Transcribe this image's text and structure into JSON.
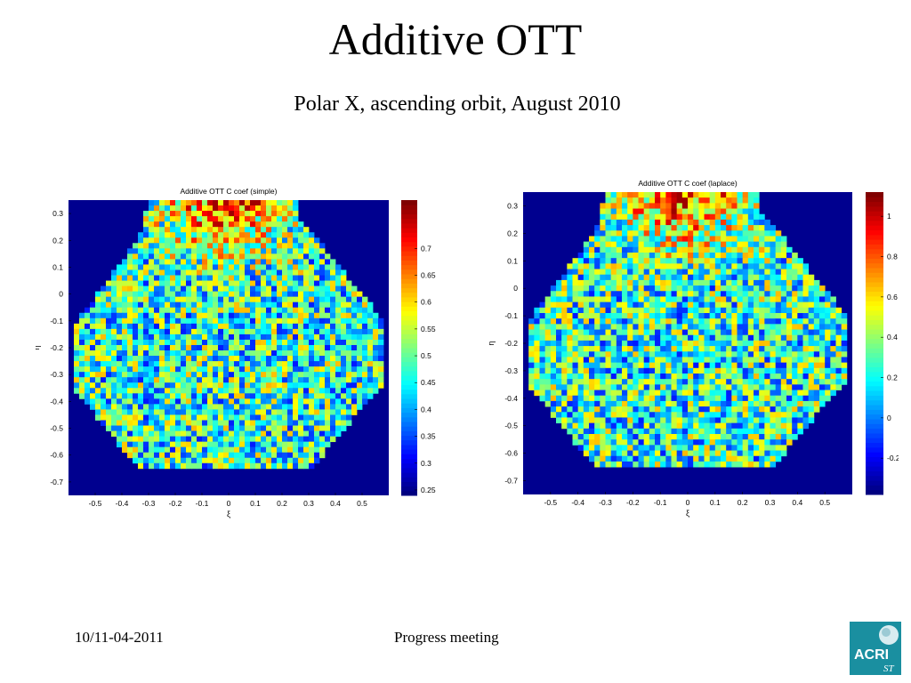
{
  "slide": {
    "title": "Additive OTT",
    "subtitle": "Polar X, ascending orbit, August 2010",
    "footer_date": "10/11-04-2011",
    "footer_center": "Progress meeting",
    "logo_text": "ACRI",
    "logo_sub": "ST"
  },
  "chart_data": [
    {
      "type": "heatmap",
      "title": "Additive OTT C coef (simple)",
      "xlabel": "ξ",
      "ylabel": "η",
      "xlim": [
        -0.6,
        0.6
      ],
      "ylim": [
        -0.75,
        0.35
      ],
      "xticks": [
        -0.5,
        -0.4,
        -0.3,
        -0.2,
        -0.1,
        0,
        0.1,
        0.2,
        0.3,
        0.4,
        0.5
      ],
      "xtick_labels": [
        "-0.5",
        "-0.4",
        "-0.3",
        "-0.2",
        "-0.1",
        "0",
        "0.1",
        "0.2",
        "0.3",
        "0.4",
        "0.5"
      ],
      "yticks": [
        0.3,
        0.2,
        0.1,
        0,
        -0.1,
        -0.2,
        -0.3,
        -0.4,
        -0.5,
        -0.6,
        -0.7
      ],
      "ytick_labels": [
        "0.3",
        "0.2",
        "0.1",
        "0",
        "-0.1",
        "-0.2",
        "-0.3",
        "-0.4",
        "-0.5",
        "-0.6",
        "-0.7"
      ],
      "colorbar": {
        "range": [
          0.24,
          0.79
        ],
        "ticks": [
          0.25,
          0.3,
          0.35,
          0.4,
          0.45,
          0.5,
          0.55,
          0.6,
          0.65,
          0.7
        ],
        "tick_labels": [
          "0.25",
          "0.3",
          "0.35",
          "0.4",
          "0.45",
          "0.5",
          "0.55",
          "0.6",
          "0.65",
          "0.7"
        ],
        "colormap": "jet"
      },
      "background_color": "#00008f",
      "data_region": "hexagonal field of view; higher values (0.65-0.75) near top center, mostly 0.45-0.55 elsewhere",
      "grid": false
    },
    {
      "type": "heatmap",
      "title": "Additive OTT C coef (laplace)",
      "xlabel": "ξ",
      "ylabel": "η",
      "xlim": [
        -0.6,
        0.6
      ],
      "ylim": [
        -0.75,
        0.35
      ],
      "xticks": [
        -0.5,
        -0.4,
        -0.3,
        -0.2,
        -0.1,
        0,
        0.1,
        0.2,
        0.3,
        0.4,
        0.5
      ],
      "xtick_labels": [
        "-0.5",
        "-0.4",
        "-0.3",
        "-0.2",
        "-0.1",
        "0",
        "0.1",
        "0.2",
        "0.3",
        "0.4",
        "0.5"
      ],
      "yticks": [
        0.3,
        0.2,
        0.1,
        0,
        -0.1,
        -0.2,
        -0.3,
        -0.4,
        -0.5,
        -0.6,
        -0.7
      ],
      "ytick_labels": [
        "0.3",
        "0.2",
        "0.1",
        "0",
        "-0.1",
        "-0.2",
        "-0.3",
        "-0.4",
        "-0.5",
        "-0.6",
        "-0.7"
      ],
      "colorbar": {
        "range": [
          -0.38,
          1.12
        ],
        "ticks": [
          -0.2,
          0,
          0.2,
          0.4,
          0.6,
          0.8,
          1
        ],
        "tick_labels": [
          "-0.2",
          "0",
          "0.2",
          "0.4",
          "0.6",
          "0.8",
          "1"
        ],
        "colormap": "jet"
      },
      "background_color": "#00008f",
      "data_region": "hexagonal field of view; higher values (0.8-1.0) near top center, mostly 0.2-0.6 elsewhere",
      "grid": false
    }
  ]
}
